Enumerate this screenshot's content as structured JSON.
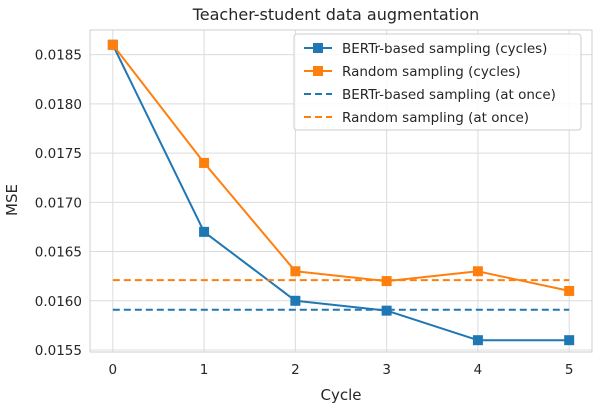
{
  "chart_data": {
    "type": "line",
    "title": "Teacher-student data augmentation",
    "xlabel": "Cycle",
    "ylabel": "MSE",
    "x": [
      0,
      1,
      2,
      3,
      4,
      5
    ],
    "xlim": [
      -0.25,
      5.25
    ],
    "ylim": [
      0.01548,
      0.01875
    ],
    "x_ticks": [
      0,
      1,
      2,
      3,
      4,
      5
    ],
    "y_ticks": [
      0.0155,
      0.016,
      0.0165,
      0.017,
      0.0175,
      0.018,
      0.0185
    ],
    "y_tick_labels": [
      "0.0155",
      "0.0160",
      "0.0165",
      "0.0170",
      "0.0175",
      "0.0180",
      "0.0185"
    ],
    "grid": true,
    "legend_position": "top-right",
    "series": [
      {
        "name": "BERTr-based sampling (cycles)",
        "color": "#1f77b4",
        "style": "solid",
        "marker": "square",
        "values": [
          0.0186,
          0.0167,
          0.016,
          0.0159,
          0.0156,
          0.0156
        ]
      },
      {
        "name": "Random sampling (cycles)",
        "color": "#ff7f0e",
        "style": "solid",
        "marker": "square",
        "values": [
          0.0186,
          0.0174,
          0.0163,
          0.0162,
          0.0163,
          0.0161
        ]
      },
      {
        "name": "BERTr-based sampling (at once)",
        "color": "#1f77b4",
        "style": "dashed",
        "marker": "none",
        "values": [
          0.01591,
          0.01591,
          0.01591,
          0.01591,
          0.01591,
          0.01591
        ]
      },
      {
        "name": "Random sampling (at once)",
        "color": "#ff7f0e",
        "style": "dashed",
        "marker": "none",
        "values": [
          0.01621,
          0.01621,
          0.01621,
          0.01621,
          0.01621,
          0.01621
        ]
      }
    ]
  }
}
